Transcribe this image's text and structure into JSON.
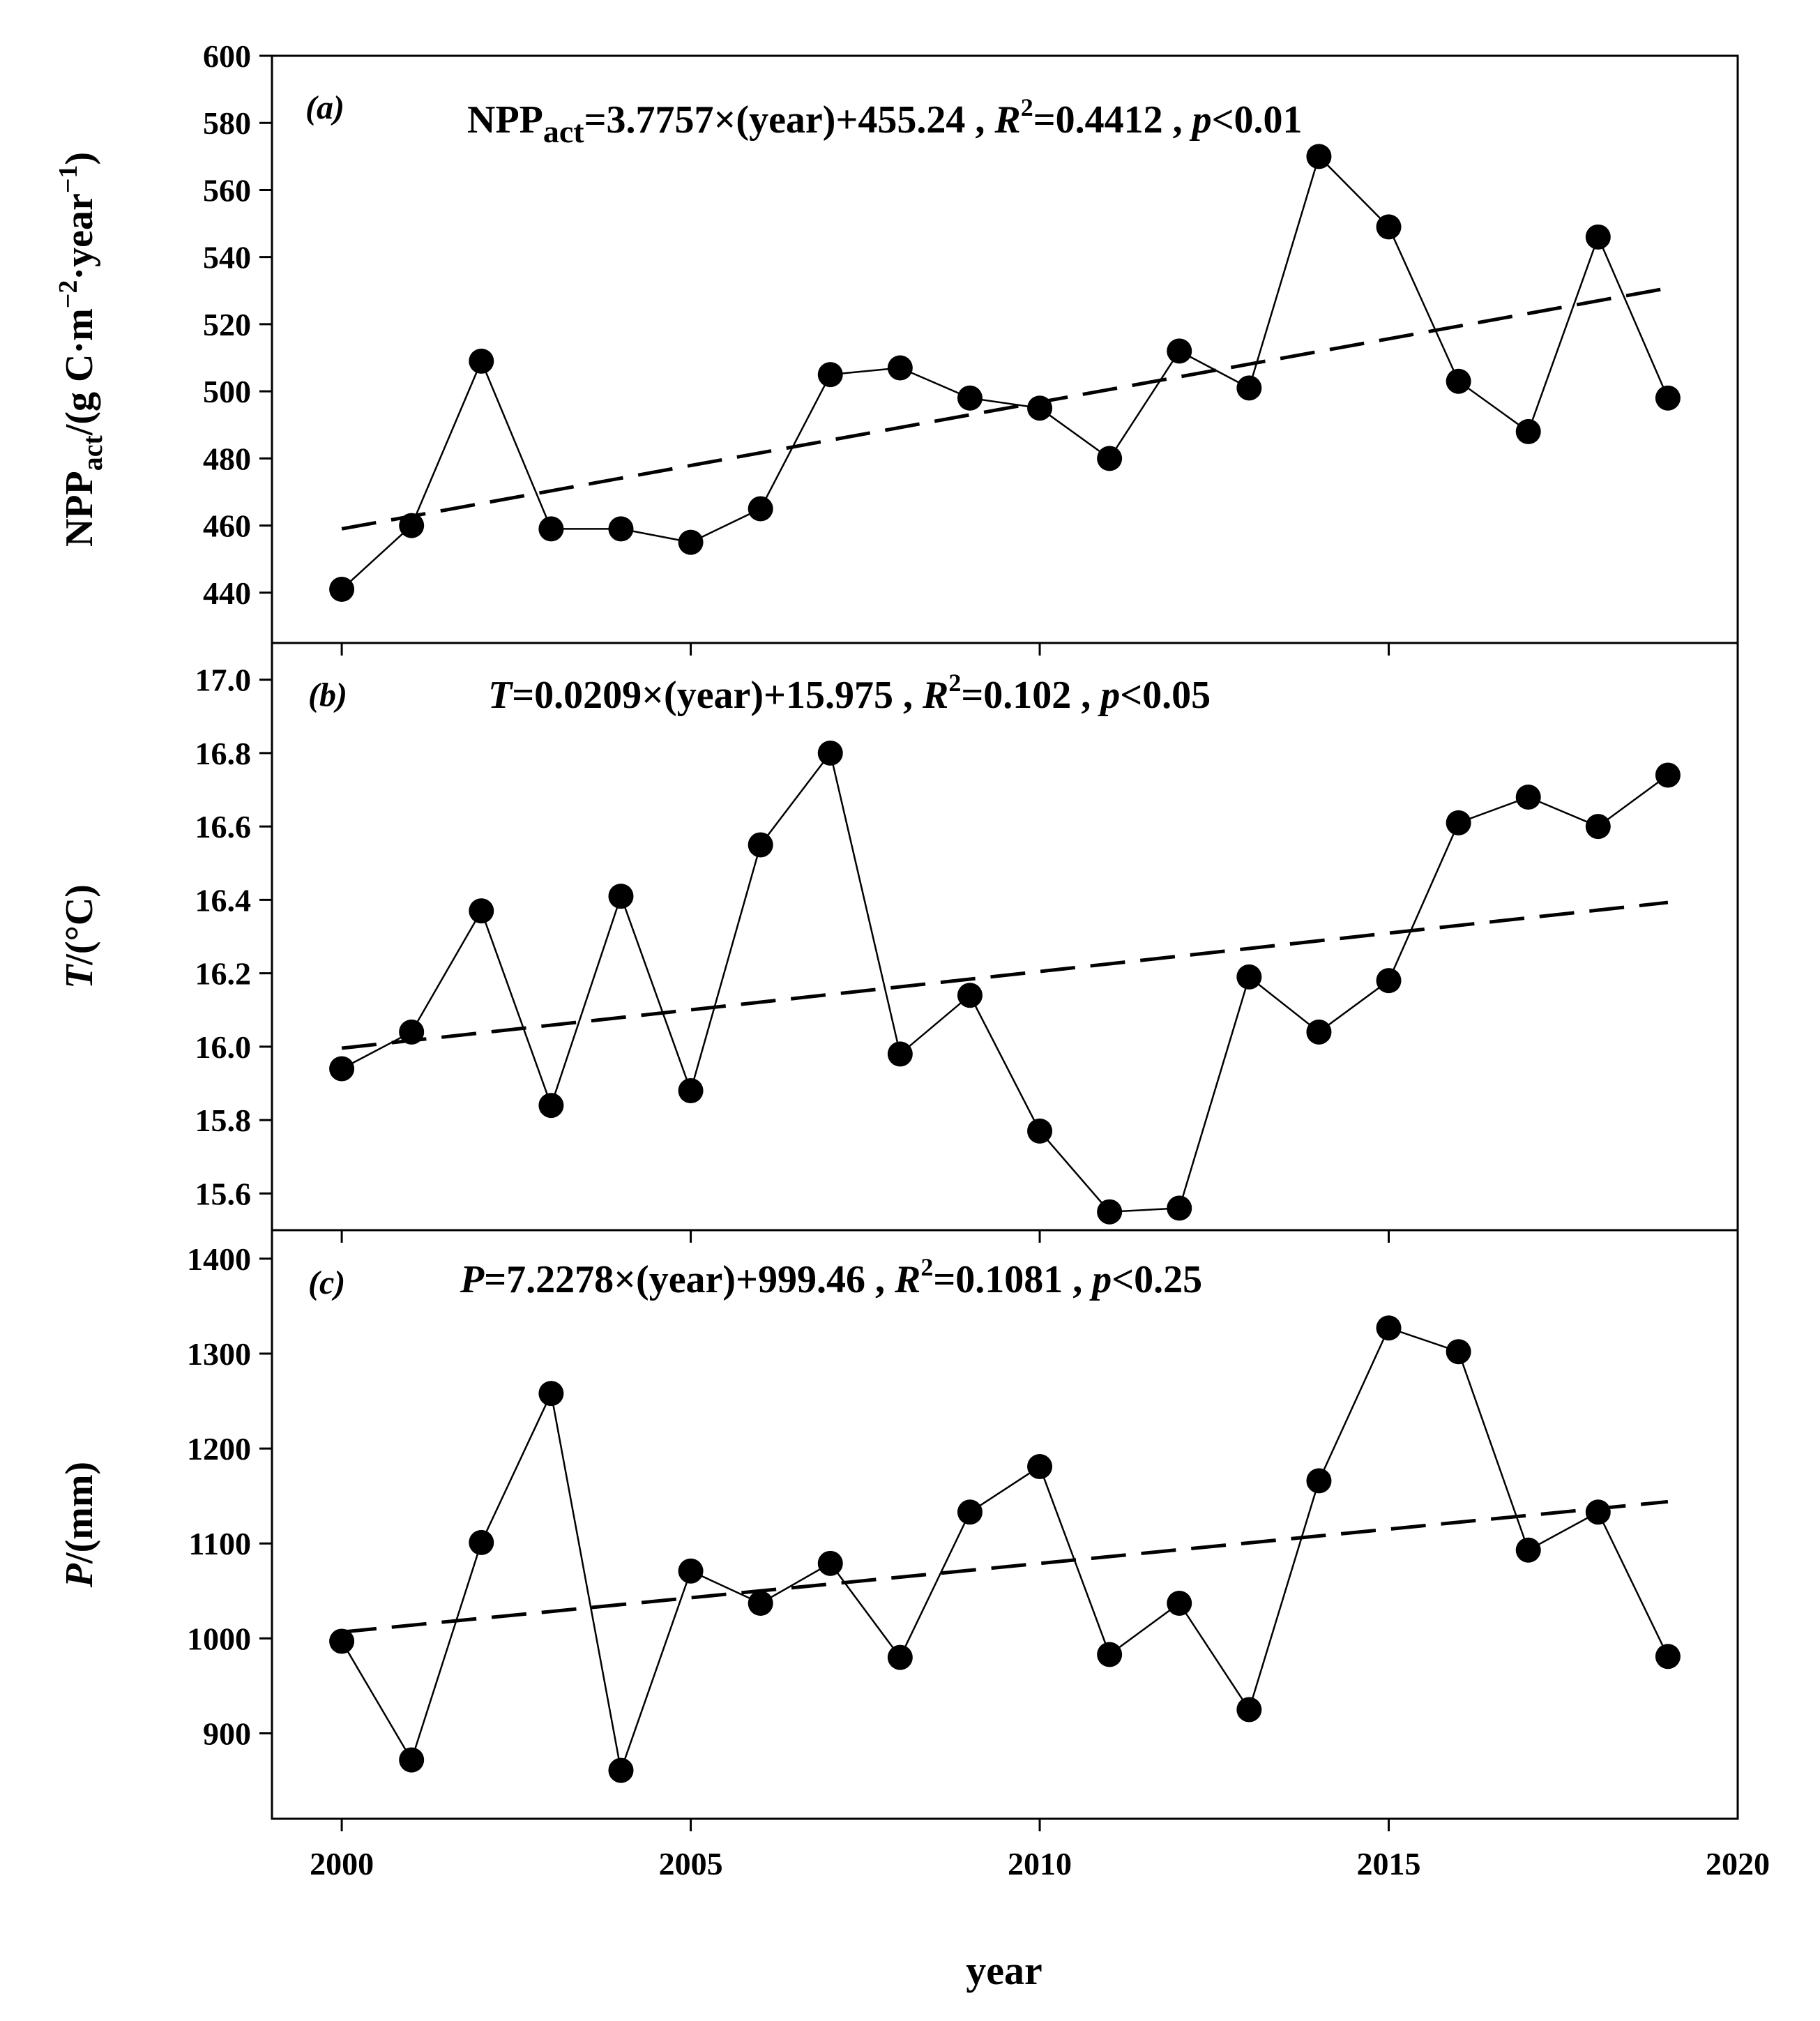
{
  "figure": {
    "xlabel": "year",
    "x_ticks": [
      2000,
      2005,
      2010,
      2015,
      2020
    ]
  },
  "chart_data": [
    {
      "type": "line",
      "panel": "(a)",
      "title": "NPPact=3.7757×(year)+455.24 , R2=0.4412 , p<0.01",
      "equation_parts": [
        "NPP",
        "act",
        "=3.7757×(year)+455.24 , ",
        "R",
        "2",
        "=0.4412 , ",
        "p",
        "<0.01"
      ],
      "ylabel": "NPPact/(g C·m−2·year−1)",
      "ylabel_parts": [
        "NPP",
        "act",
        "/(g C·m",
        "−2",
        "·year",
        "−1",
        ")"
      ],
      "xlim": [
        1999,
        2020
      ],
      "ylim": [
        425,
        600
      ],
      "y_ticks": [
        440,
        460,
        480,
        500,
        520,
        540,
        560,
        580,
        600
      ],
      "x": [
        2000,
        2001,
        2002,
        2003,
        2004,
        2005,
        2006,
        2007,
        2008,
        2009,
        2010,
        2011,
        2012,
        2013,
        2014,
        2015,
        2016,
        2017,
        2018,
        2019
      ],
      "series": [
        {
          "name": "NPPact",
          "values": [
            441,
            460,
            509,
            459,
            459,
            455,
            465,
            505,
            507,
            498,
            495,
            480,
            512,
            501,
            570,
            549,
            503,
            488,
            546,
            498
          ]
        }
      ],
      "trend": {
        "slope": 3.7757,
        "intercept": 455.24,
        "x_range": [
          2000,
          2019
        ]
      }
    },
    {
      "type": "line",
      "panel": "(b)",
      "title": "T=0.0209×(year)+15.975 , R2=0.102 , p<0.05",
      "equation_parts": [
        "T",
        "=0.0209×(year)+15.975 , ",
        "R",
        "2",
        "=0.102 , ",
        "p",
        "<0.05"
      ],
      "ylabel": "T/(°C)",
      "ylabel_parts": [
        "T",
        "/(°C)"
      ],
      "xlim": [
        1999,
        2020
      ],
      "ylim": [
        15.5,
        17.1
      ],
      "y_ticks": [
        15.6,
        15.8,
        16.0,
        16.2,
        16.4,
        16.6,
        16.8,
        17.0
      ],
      "y_tick_decimals": 1,
      "x": [
        2000,
        2001,
        2002,
        2003,
        2004,
        2005,
        2006,
        2007,
        2008,
        2009,
        2010,
        2011,
        2012,
        2013,
        2014,
        2015,
        2016,
        2017,
        2018,
        2019
      ],
      "series": [
        {
          "name": "T",
          "values": [
            15.94,
            16.04,
            16.37,
            15.84,
            16.41,
            15.88,
            16.55,
            16.8,
            15.98,
            16.14,
            15.77,
            15.55,
            15.56,
            16.19,
            16.04,
            16.18,
            16.61,
            16.68,
            16.6,
            16.74
          ]
        }
      ],
      "trend": {
        "slope": 0.0209,
        "intercept": 15.975,
        "x_range": [
          2000,
          2019
        ]
      }
    },
    {
      "type": "line",
      "panel": "(c)",
      "title": "P=7.2278×(year)+999.46 , R2=0.1081 , p<0.25",
      "equation_parts": [
        "P",
        "=7.2278×(year)+999.46 , ",
        "R",
        "2",
        "=0.1081 , ",
        "p",
        "<0.25"
      ],
      "ylabel": "P/(mm)",
      "ylabel_parts": [
        "P",
        "/(mm)"
      ],
      "xlim": [
        1999,
        2020
      ],
      "ylim": [
        810,
        1430
      ],
      "y_ticks": [
        900,
        1000,
        1100,
        1200,
        1300,
        1400
      ],
      "x": [
        2000,
        2001,
        2002,
        2003,
        2004,
        2005,
        2006,
        2007,
        2008,
        2009,
        2010,
        2011,
        2012,
        2013,
        2014,
        2015,
        2016,
        2017,
        2018,
        2019
      ],
      "series": [
        {
          "name": "P",
          "values": [
            997,
            872,
            1101,
            1258,
            861,
            1071,
            1037,
            1079,
            980,
            1133,
            1181,
            983,
            1037,
            925,
            1166,
            1327,
            1302,
            1093,
            1133,
            981
          ]
        }
      ],
      "trend": {
        "slope": 7.2278,
        "intercept": 999.46,
        "x_range": [
          2000,
          2019
        ]
      }
    }
  ]
}
